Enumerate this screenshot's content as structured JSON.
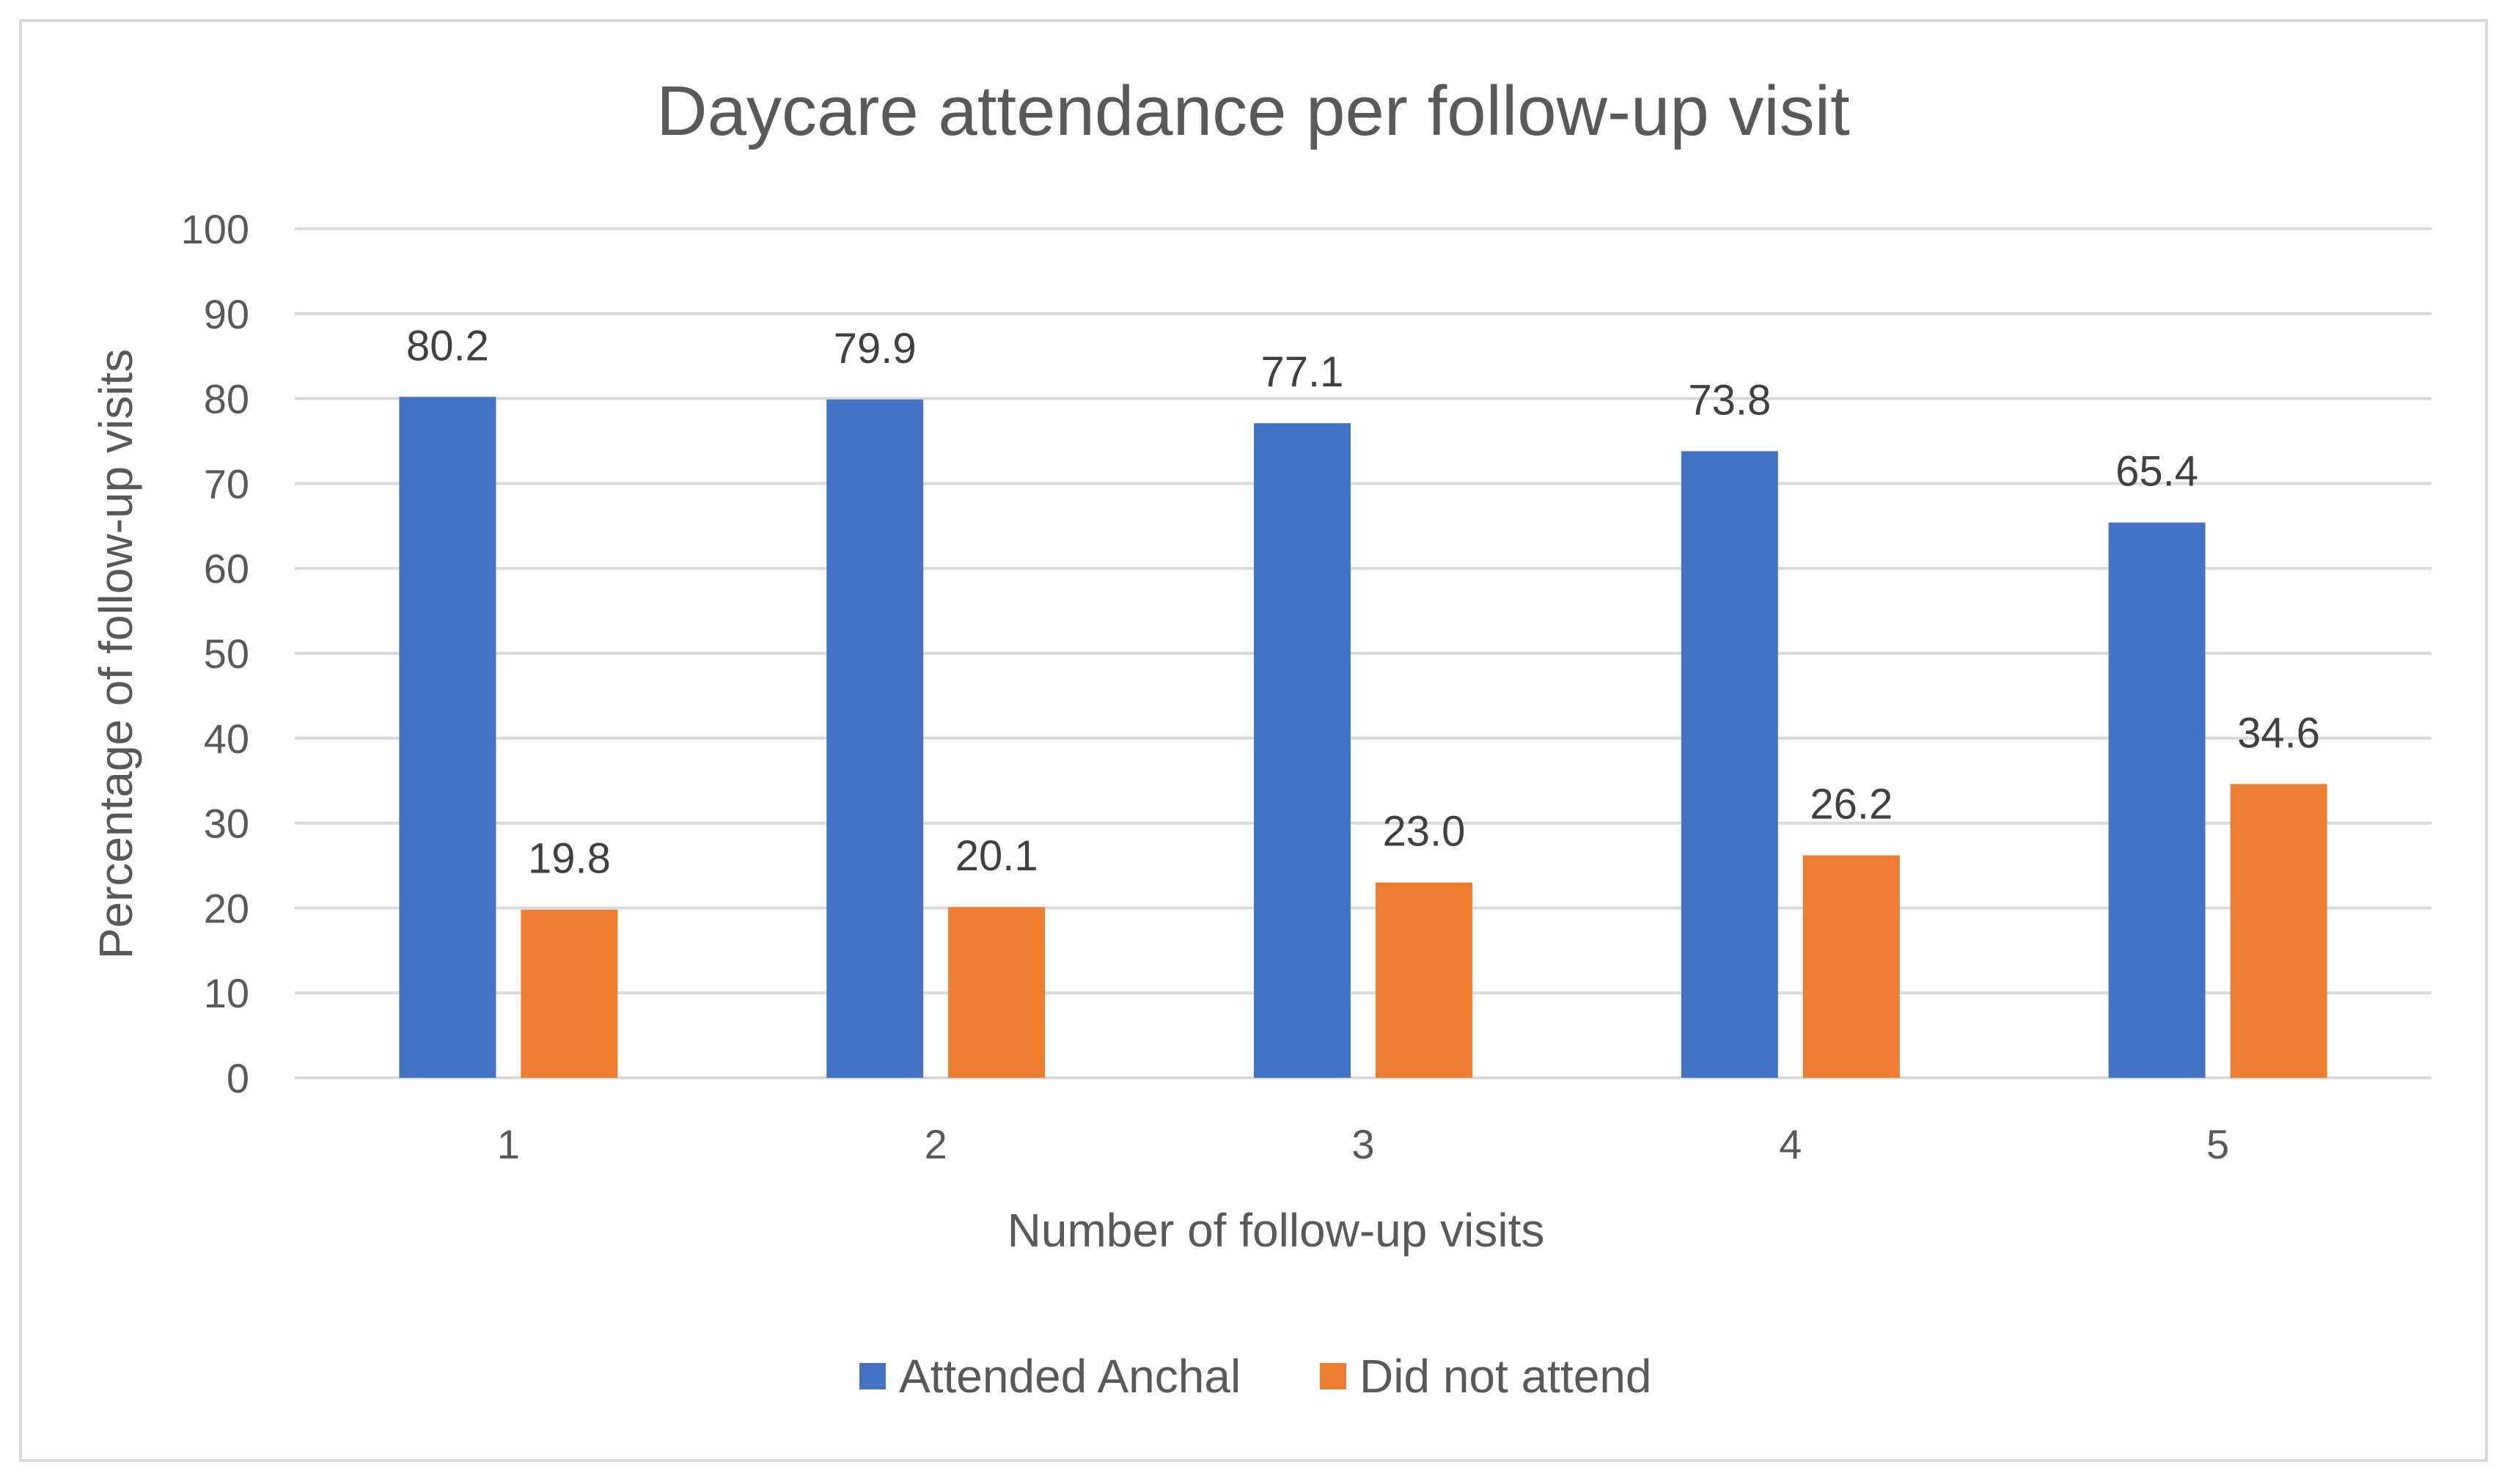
{
  "chart_data": {
    "type": "bar",
    "title": "Daycare attendance per follow-up visit",
    "xlabel": "Number of follow-up visits",
    "ylabel": "Percentage of follow-up visits",
    "categories": [
      "1",
      "2",
      "3",
      "4",
      "5"
    ],
    "ylim": [
      0,
      100
    ],
    "yticks": [
      0,
      10,
      20,
      30,
      40,
      50,
      60,
      70,
      80,
      90,
      100
    ],
    "grid": true,
    "legend_position": "bottom",
    "series": [
      {
        "name": "Attended Anchal",
        "color": "#4472c4",
        "values": [
          80.2,
          79.9,
          77.1,
          73.8,
          65.4
        ],
        "labels": [
          "80.2",
          "79.9",
          "77.1",
          "73.8",
          "65.4"
        ]
      },
      {
        "name": "Did not attend",
        "color": "#ed7d31",
        "values": [
          19.8,
          20.1,
          23.0,
          26.2,
          34.6
        ],
        "labels": [
          "19.8",
          "20.1",
          "23.0",
          "26.2",
          "34.6"
        ]
      }
    ]
  }
}
